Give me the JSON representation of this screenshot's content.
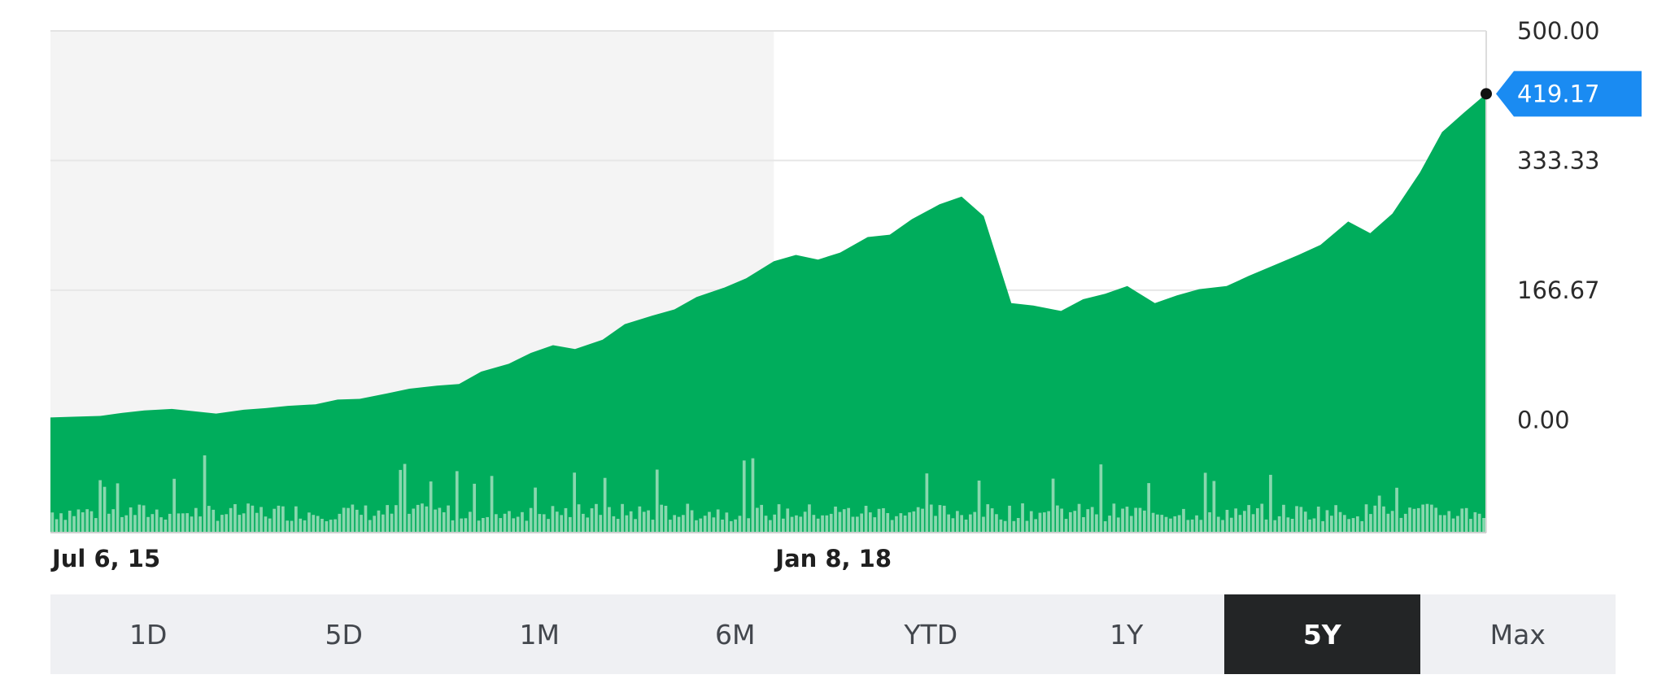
{
  "colors": {
    "area": "#00ad5c",
    "volume": "#89d7ae",
    "grid": "#e6e6e6",
    "shaded_region": "#f4f4f4",
    "price_tag": "#1a8bf2",
    "active_range": "#232526",
    "range_bar": "#eff0f3"
  },
  "chart_data": {
    "type": "area",
    "title": "",
    "xlabel": "",
    "ylabel": "",
    "ylim": [
      -145,
      500
    ],
    "y_ticks": [
      "500.00",
      "333.33",
      "166.67",
      "0.00"
    ],
    "y_tick_values": [
      500,
      333.33,
      166.67,
      0
    ],
    "x_tick_labels": [
      {
        "label": "Jul 6, 15",
        "date": "2015-07-06"
      },
      {
        "label": "Jan 8, 18",
        "date": "2018-01-08"
      }
    ],
    "shaded_until": "2018-01-08",
    "last_price": "419.17",
    "x": [
      "2015-07-06",
      "2015-08-03",
      "2015-09-07",
      "2015-10-05",
      "2015-11-02",
      "2015-12-07",
      "2016-01-04",
      "2016-02-01",
      "2016-03-07",
      "2016-04-04",
      "2016-05-02",
      "2016-06-06",
      "2016-07-04",
      "2016-08-01",
      "2016-09-05",
      "2016-10-03",
      "2016-11-07",
      "2016-12-05",
      "2017-01-02",
      "2017-02-06",
      "2017-03-06",
      "2017-04-03",
      "2017-05-01",
      "2017-06-05",
      "2017-07-03",
      "2017-08-07",
      "2017-09-04",
      "2017-10-02",
      "2017-11-06",
      "2017-12-04",
      "2018-01-08",
      "2018-02-05",
      "2018-03-05",
      "2018-04-02",
      "2018-05-07",
      "2018-06-04",
      "2018-07-02",
      "2018-08-06",
      "2018-09-03",
      "2018-10-01",
      "2018-11-05",
      "2018-12-03",
      "2019-01-07",
      "2019-02-04",
      "2019-03-04",
      "2019-04-01",
      "2019-05-06",
      "2019-06-03",
      "2019-07-01",
      "2019-08-05",
      "2019-09-02",
      "2019-10-07",
      "2019-11-04",
      "2019-12-02",
      "2020-01-06",
      "2020-02-03",
      "2020-03-02",
      "2020-04-06",
      "2020-05-04",
      "2020-06-01",
      "2020-06-29"
    ],
    "series": [
      {
        "values": [
          3,
          4,
          5,
          9,
          12,
          14,
          11,
          8,
          13,
          15,
          18,
          20,
          26,
          27,
          34,
          40,
          44,
          46,
          62,
          72,
          86,
          96,
          91,
          103,
          123,
          134,
          142,
          158,
          170,
          182,
          204,
          212,
          206,
          215,
          235,
          238,
          258,
          277,
          287,
          262,
          150,
          147,
          140,
          155,
          162,
          172,
          150,
          160,
          168,
          172,
          185,
          200,
          212,
          225,
          255,
          240,
          265,
          318,
          370,
          395,
          419.17
        ]
      }
    ]
  },
  "range_selector": {
    "options": [
      "1D",
      "5D",
      "1M",
      "6M",
      "YTD",
      "1Y",
      "5Y",
      "Max"
    ],
    "selected": "5Y"
  }
}
